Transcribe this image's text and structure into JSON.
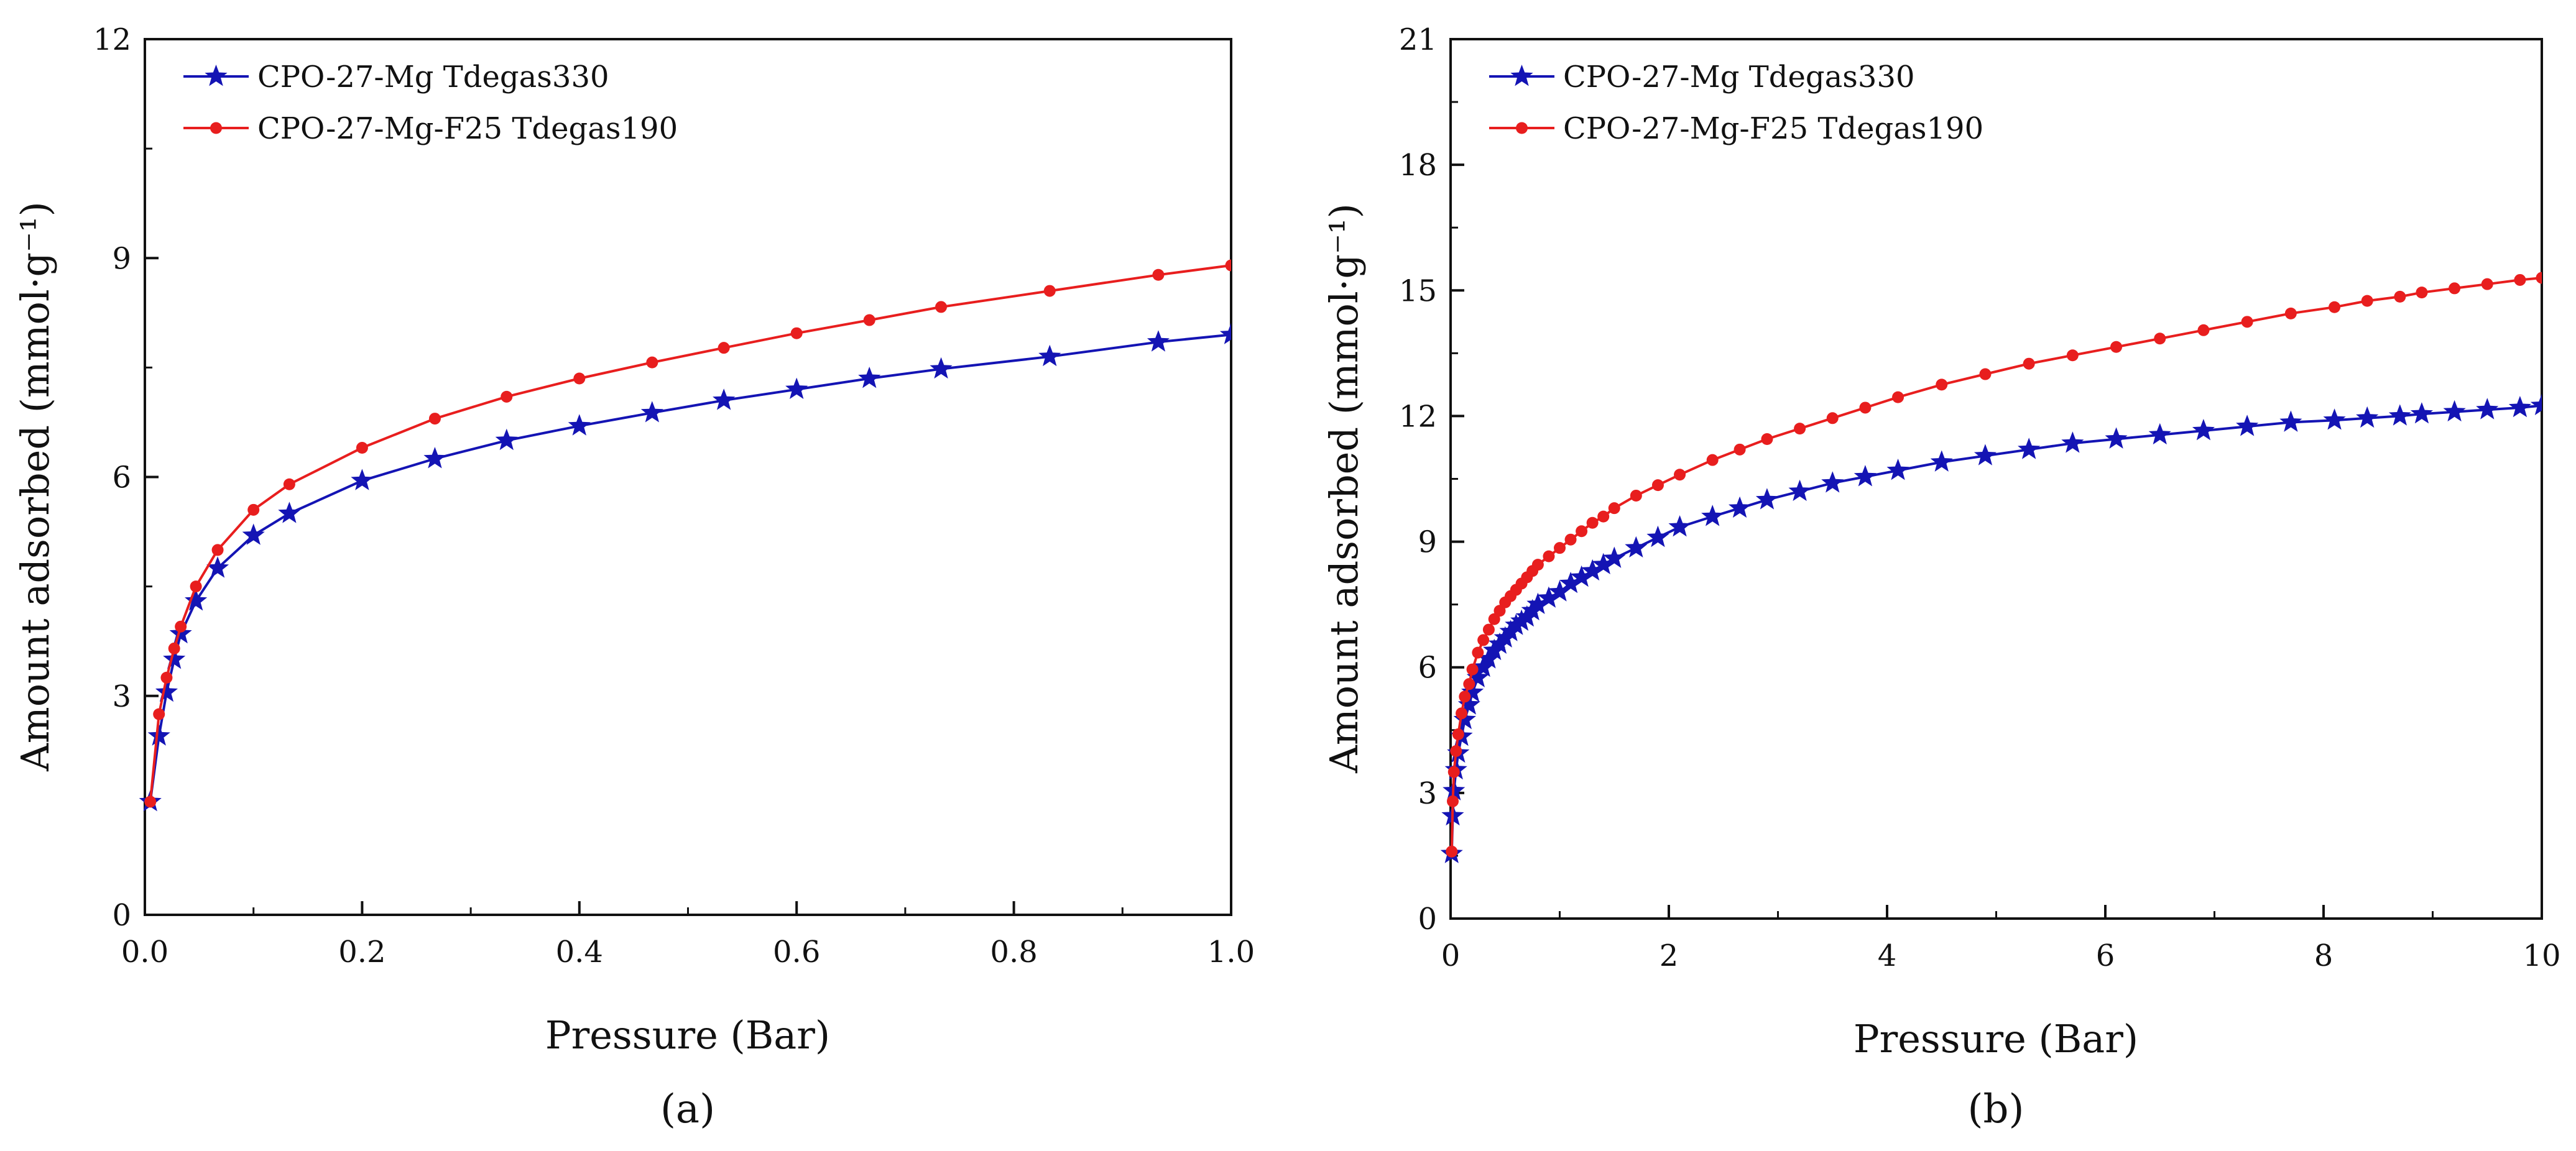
{
  "chart_data": [
    {
      "type": "line",
      "panel_label": "(a)",
      "xlabel": "Pressure (Bar)",
      "ylabel": "Amount adsorbed (mmol·g⁻¹)",
      "xlim": [
        0,
        1.0
      ],
      "ylim": [
        0,
        12
      ],
      "xticks": [
        "0.0",
        "0.2",
        "0.4",
        "0.6",
        "0.8",
        "1.0"
      ],
      "yticks": [
        "0",
        "3",
        "6",
        "9",
        "12"
      ],
      "grid": false,
      "legend_position": "top-left",
      "series": [
        {
          "name": "CPO-27-Mg Tdegas330",
          "color": "#1414b4",
          "marker": "star",
          "x": [
            0.005,
            0.013,
            0.02,
            0.027,
            0.033,
            0.047,
            0.067,
            0.1,
            0.133,
            0.2,
            0.267,
            0.333,
            0.4,
            0.467,
            0.533,
            0.6,
            0.667,
            0.733,
            0.833,
            0.933,
            1.0
          ],
          "y": [
            1.55,
            2.45,
            3.05,
            3.5,
            3.85,
            4.3,
            4.75,
            5.2,
            5.5,
            5.95,
            6.25,
            6.5,
            6.7,
            6.88,
            7.05,
            7.2,
            7.35,
            7.48,
            7.65,
            7.85,
            7.95
          ]
        },
        {
          "name": "CPO-27-Mg-F25 Tdegas190",
          "color": "#e81e1e",
          "marker": "circle",
          "x": [
            0.005,
            0.013,
            0.02,
            0.027,
            0.033,
            0.047,
            0.067,
            0.1,
            0.133,
            0.2,
            0.267,
            0.333,
            0.4,
            0.467,
            0.533,
            0.6,
            0.667,
            0.733,
            0.833,
            0.933,
            1.0
          ],
          "y": [
            1.55,
            2.75,
            3.25,
            3.65,
            3.95,
            4.5,
            5.0,
            5.55,
            5.9,
            6.4,
            6.8,
            7.1,
            7.35,
            7.57,
            7.77,
            7.97,
            8.15,
            8.33,
            8.55,
            8.77,
            8.9
          ]
        }
      ]
    },
    {
      "type": "line",
      "panel_label": "(b)",
      "xlabel": "Pressure (Bar)",
      "ylabel": "Amount adsorbed (mmol·g⁻¹)",
      "xlim": [
        0,
        10
      ],
      "ylim": [
        0,
        21
      ],
      "xticks": [
        "0",
        "2",
        "4",
        "6",
        "8",
        "10"
      ],
      "yticks": [
        "0",
        "3",
        "6",
        "9",
        "12",
        "15",
        "18",
        "21"
      ],
      "grid": false,
      "legend_position": "top-left",
      "series": [
        {
          "name": "CPO-27-Mg Tdegas330",
          "color": "#1414b4",
          "marker": "star",
          "x": [
            0.01,
            0.02,
            0.03,
            0.05,
            0.07,
            0.1,
            0.13,
            0.17,
            0.2,
            0.25,
            0.3,
            0.35,
            0.4,
            0.45,
            0.5,
            0.55,
            0.6,
            0.65,
            0.7,
            0.75,
            0.8,
            0.9,
            1.0,
            1.1,
            1.2,
            1.3,
            1.4,
            1.5,
            1.7,
            1.9,
            2.1,
            2.4,
            2.65,
            2.9,
            3.2,
            3.5,
            3.8,
            4.1,
            4.5,
            4.9,
            5.3,
            5.7,
            6.1,
            6.5,
            6.9,
            7.3,
            7.7,
            8.1,
            8.4,
            8.7,
            8.9,
            9.2,
            9.5,
            9.8,
            10.0
          ],
          "y": [
            1.55,
            2.45,
            3.05,
            3.55,
            3.95,
            4.35,
            4.75,
            5.1,
            5.4,
            5.75,
            6.0,
            6.2,
            6.4,
            6.55,
            6.7,
            6.85,
            7.0,
            7.1,
            7.2,
            7.35,
            7.5,
            7.65,
            7.8,
            8.0,
            8.15,
            8.3,
            8.45,
            8.6,
            8.85,
            9.1,
            9.35,
            9.6,
            9.8,
            10.0,
            10.2,
            10.4,
            10.55,
            10.7,
            10.9,
            11.05,
            11.2,
            11.35,
            11.45,
            11.55,
            11.65,
            11.75,
            11.85,
            11.9,
            11.95,
            12.0,
            12.05,
            12.1,
            12.15,
            12.2,
            12.25
          ]
        },
        {
          "name": "CPO-27-Mg-F25 Tdegas190",
          "color": "#e81e1e",
          "marker": "circle",
          "x": [
            0.01,
            0.02,
            0.03,
            0.05,
            0.07,
            0.1,
            0.13,
            0.17,
            0.2,
            0.25,
            0.3,
            0.35,
            0.4,
            0.45,
            0.5,
            0.55,
            0.6,
            0.65,
            0.7,
            0.75,
            0.8,
            0.9,
            1.0,
            1.1,
            1.2,
            1.3,
            1.4,
            1.5,
            1.7,
            1.9,
            2.1,
            2.4,
            2.65,
            2.9,
            3.2,
            3.5,
            3.8,
            4.1,
            4.5,
            4.9,
            5.3,
            5.7,
            6.1,
            6.5,
            6.9,
            7.3,
            7.7,
            8.1,
            8.4,
            8.7,
            8.9,
            9.2,
            9.5,
            9.8,
            10.0
          ],
          "y": [
            1.6,
            2.8,
            3.5,
            4.0,
            4.4,
            4.9,
            5.3,
            5.6,
            5.95,
            6.35,
            6.65,
            6.9,
            7.15,
            7.35,
            7.55,
            7.7,
            7.85,
            8.0,
            8.15,
            8.3,
            8.45,
            8.65,
            8.85,
            9.05,
            9.25,
            9.45,
            9.6,
            9.8,
            10.1,
            10.35,
            10.6,
            10.95,
            11.2,
            11.45,
            11.7,
            11.95,
            12.2,
            12.45,
            12.75,
            13.0,
            13.25,
            13.45,
            13.65,
            13.85,
            14.05,
            14.25,
            14.45,
            14.6,
            14.75,
            14.85,
            14.95,
            15.05,
            15.15,
            15.25,
            15.3
          ]
        }
      ]
    }
  ]
}
